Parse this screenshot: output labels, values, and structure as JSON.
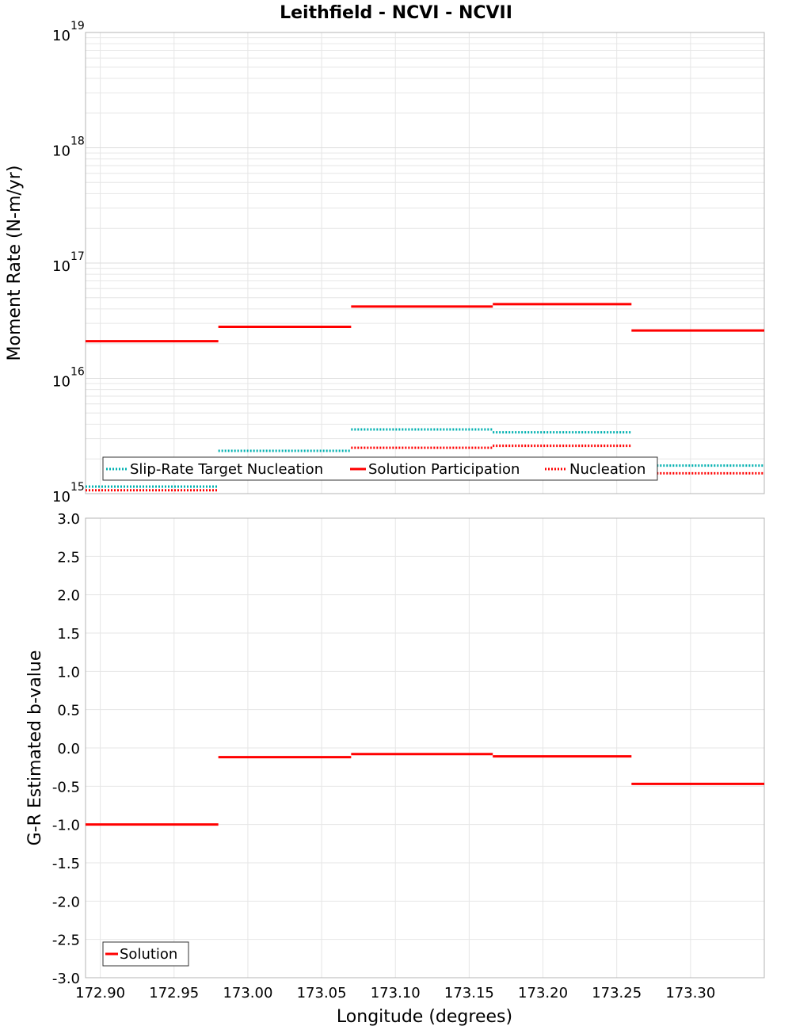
{
  "title": "Leithfield - NCVI - NCVII",
  "colors": {
    "solution": "#ff0000",
    "target": "#00b0b0",
    "nucleation": "#ff0000",
    "grid": "#e6e6e6",
    "frame": "#b4b4b4"
  },
  "chart_data": [
    {
      "type": "line",
      "step": true,
      "title": "Leithfield - NCVI - NCVII",
      "xlabel": "",
      "ylabel": "Moment Rate (N-m/yr)",
      "yscale": "log",
      "xlim": [
        172.89,
        173.35
      ],
      "ylim": [
        1000000000000000.0,
        1e+19
      ],
      "grid": true,
      "legend_position": "bottom",
      "y_ticks": [
        {
          "base": "10",
          "exp": "15",
          "value": 1000000000000000.0
        },
        {
          "base": "10",
          "exp": "16",
          "value": 1e+16
        },
        {
          "base": "10",
          "exp": "17",
          "value": 1e+17
        },
        {
          "base": "10",
          "exp": "18",
          "value": 1e+18
        },
        {
          "base": "10",
          "exp": "19",
          "value": 1e+19
        }
      ],
      "legend": [
        "Slip-Rate Target Nucleation",
        "Solution Participation",
        "Nucleation"
      ],
      "series": [
        {
          "name": "Slip-Rate Target Nucleation",
          "style": "dotted",
          "color": "#00b0b0",
          "segments": [
            {
              "x0": 172.89,
              "x1": 172.98,
              "y": 1150000000000000.0
            },
            {
              "x0": 172.98,
              "x1": 173.07,
              "y": 2350000000000000.0
            },
            {
              "x0": 173.07,
              "x1": 173.166,
              "y": 3600000000000000.0
            },
            {
              "x0": 173.166,
              "x1": 173.26,
              "y": 3400000000000000.0
            },
            {
              "x0": 173.26,
              "x1": 173.35,
              "y": 1750000000000000.0
            }
          ]
        },
        {
          "name": "Solution Participation",
          "style": "solid",
          "color": "#ff0000",
          "segments": [
            {
              "x0": 172.89,
              "x1": 172.98,
              "y": 2.1e+16
            },
            {
              "x0": 172.98,
              "x1": 173.07,
              "y": 2.8e+16
            },
            {
              "x0": 173.07,
              "x1": 173.166,
              "y": 4.2e+16
            },
            {
              "x0": 173.166,
              "x1": 173.26,
              "y": 4.4e+16
            },
            {
              "x0": 173.26,
              "x1": 173.35,
              "y": 2.6e+16
            }
          ]
        },
        {
          "name": "Nucleation",
          "style": "dotted",
          "color": "#ff0000",
          "segments": [
            {
              "x0": 172.89,
              "x1": 172.98,
              "y": 1070000000000000.0
            },
            {
              "x0": 172.98,
              "x1": 173.07,
              "y": null
            },
            {
              "x0": 173.07,
              "x1": 173.166,
              "y": 2500000000000000.0
            },
            {
              "x0": 173.166,
              "x1": 173.26,
              "y": 2600000000000000.0
            },
            {
              "x0": 173.26,
              "x1": 173.35,
              "y": 1500000000000000.0
            }
          ]
        }
      ]
    },
    {
      "type": "line",
      "step": true,
      "xlabel": "Longitude (degrees)",
      "ylabel": "G-R Estimated b-value",
      "xlim": [
        172.89,
        173.35
      ],
      "ylim": [
        -3.0,
        3.0
      ],
      "grid": true,
      "legend_position": "bottom-left",
      "x_ticks": [
        "172.90",
        "172.95",
        "173.00",
        "173.05",
        "173.10",
        "173.15",
        "173.20",
        "173.25",
        "173.30"
      ],
      "y_ticks": [
        "3.0",
        "2.5",
        "2.0",
        "1.5",
        "1.0",
        "0.5",
        "0.0",
        "-0.5",
        "-1.0",
        "-1.5",
        "-2.0",
        "-2.5",
        "-3.0"
      ],
      "legend": [
        "Solution"
      ],
      "series": [
        {
          "name": "Solution",
          "style": "solid",
          "color": "#ff0000",
          "segments": [
            {
              "x0": 172.89,
              "x1": 172.98,
              "y": -1.0
            },
            {
              "x0": 172.98,
              "x1": 173.07,
              "y": -0.12
            },
            {
              "x0": 173.07,
              "x1": 173.166,
              "y": -0.08
            },
            {
              "x0": 173.166,
              "x1": 173.26,
              "y": -0.11
            },
            {
              "x0": 173.26,
              "x1": 173.35,
              "y": -0.47
            }
          ]
        }
      ]
    }
  ]
}
